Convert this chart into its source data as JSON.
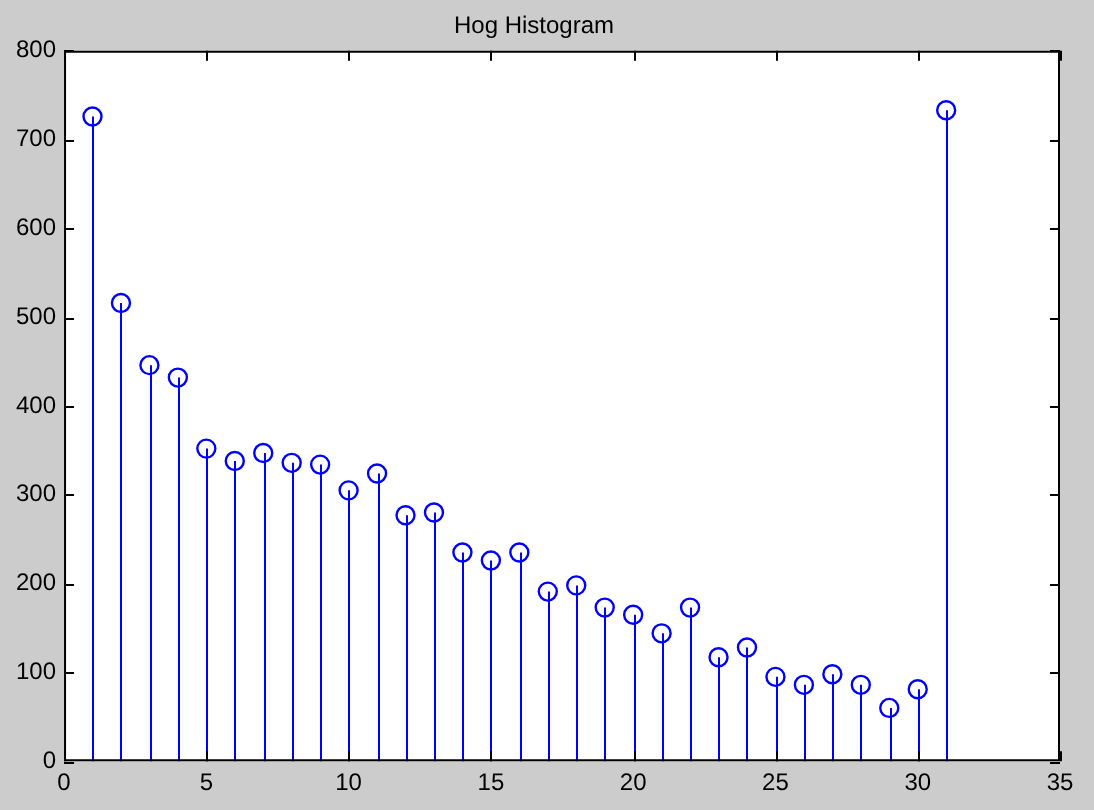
{
  "chart_data": {
    "type": "lollipop",
    "title": "Hog Histogram",
    "x": [
      1,
      2,
      3,
      4,
      5,
      6,
      7,
      8,
      9,
      10,
      11,
      12,
      13,
      14,
      15,
      16,
      17,
      18,
      19,
      20,
      21,
      22,
      23,
      24,
      25,
      26,
      27,
      28,
      29,
      30,
      31
    ],
    "values": [
      726,
      516,
      446,
      432,
      352,
      338,
      347,
      336,
      334,
      305,
      324,
      277,
      280,
      235,
      226,
      235,
      191,
      198,
      173,
      165,
      144,
      173,
      117,
      128,
      95,
      86,
      98,
      86,
      60,
      81,
      733
    ],
    "color": "#0000ff",
    "marker": "circle",
    "grid": false,
    "legend": false,
    "xlim": [
      0,
      35
    ],
    "xticks": [
      0,
      5,
      10,
      15,
      20,
      25,
      30,
      35
    ],
    "ylim": [
      0,
      800
    ],
    "yticks": [
      0,
      100,
      200,
      300,
      400,
      500,
      600,
      700,
      800
    ]
  }
}
